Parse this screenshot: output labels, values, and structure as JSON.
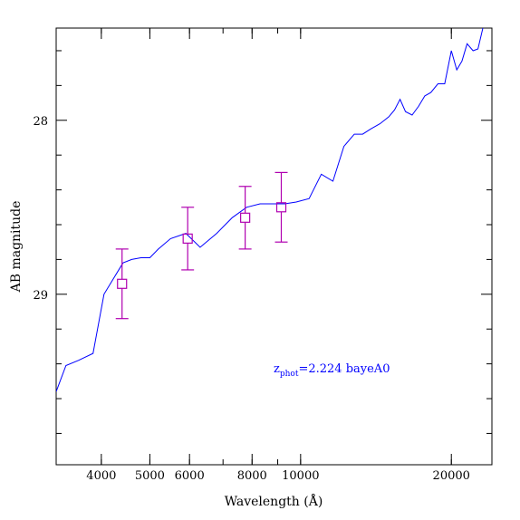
{
  "chart_data": {
    "type": "line",
    "xlabel": "Wavelength (Å)",
    "ylabel": "AB magnitude",
    "x_scale": "log",
    "xlim": [
      3250,
      24100
    ],
    "ylim": [
      29.98,
      27.47
    ],
    "x_ticks": [
      {
        "value": 4000,
        "label": "4000"
      },
      {
        "value": 5000,
        "label": "5000"
      },
      {
        "value": 6000,
        "label": "6000"
      },
      {
        "value": 8000,
        "label": "8000"
      },
      {
        "value": 10000,
        "label": "10000"
      },
      {
        "value": 20000,
        "label": "20000"
      }
    ],
    "y_ticks": [
      {
        "value": 28,
        "label": "28"
      },
      {
        "value": 29,
        "label": "29"
      }
    ],
    "y_minor_ticks": [
      27.6,
      27.8,
      28.2,
      28.4,
      28.6,
      28.8,
      29.2,
      29.4,
      29.6,
      29.8
    ],
    "annotation": {
      "prefix": "z",
      "subscript": "phot",
      "text": "=2.224 bayeA0",
      "color": "#0000ff"
    },
    "series": [
      {
        "type": "line",
        "color": "#0000ff",
        "x": [
          3250,
          3400,
          3600,
          3850,
          4050,
          4250,
          4420,
          4600,
          4800,
          5000,
          5200,
          5500,
          5900,
          6300,
          6800,
          7300,
          7800,
          8300,
          8800,
          9300,
          9800,
          10400,
          11000,
          11600,
          12200,
          12800,
          13300,
          13800,
          14400,
          15000,
          15400,
          15800,
          16200,
          16700,
          17200,
          17700,
          18200,
          18800,
          19400,
          20000,
          20500,
          21000,
          21500,
          22100,
          22600,
          23200,
          23700,
          24100
        ],
        "y": [
          29.56,
          29.41,
          29.38,
          29.34,
          29.0,
          28.9,
          28.82,
          28.8,
          28.79,
          28.79,
          28.74,
          28.68,
          28.65,
          28.73,
          28.65,
          28.56,
          28.5,
          28.48,
          28.48,
          28.48,
          28.47,
          28.45,
          28.31,
          28.35,
          28.15,
          28.08,
          28.08,
          28.05,
          28.02,
          27.98,
          27.94,
          27.88,
          27.95,
          27.97,
          27.92,
          27.86,
          27.84,
          27.79,
          27.79,
          27.6,
          27.71,
          27.66,
          27.56,
          27.6,
          27.59,
          27.45,
          27.42,
          27.43
        ]
      },
      {
        "type": "errorbar",
        "color": "#b000b0",
        "marker": "square",
        "x": [
          4400,
          5950,
          7750,
          9150
        ],
        "y": [
          28.94,
          28.68,
          28.56,
          28.5
        ],
        "yerr": [
          0.2,
          0.18,
          0.18,
          0.2
        ]
      }
    ]
  }
}
